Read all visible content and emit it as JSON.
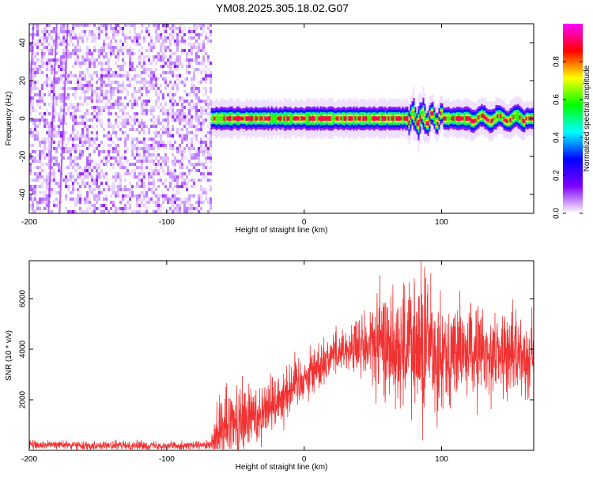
{
  "title": "YM08.2025.305.18.02.G07",
  "chart_data": [
    {
      "type": "heatmap",
      "xlabel": "Height of straight line (km)",
      "ylabel": "Frequency (Hz)",
      "xlim": [
        -200,
        167
      ],
      "ylim": [
        -50,
        50
      ],
      "xticks": [
        -200,
        -100,
        0,
        100
      ],
      "yticks": [
        -40,
        -20,
        0,
        20,
        40
      ],
      "noise_region_x": [
        -200,
        -68
      ],
      "signal_band_center_hz": 0,
      "signal_band_halfwidth_hz": 4,
      "colorbar": {
        "label": "Normalized spectral amplitude",
        "range": [
          0,
          1
        ],
        "ticks": [
          "0.0",
          "0.2",
          "0.4",
          "0.6",
          "0.8"
        ],
        "tick_values": [
          0.0,
          0.2,
          0.4,
          0.6,
          0.8
        ],
        "colors": [
          "#ffffff",
          "#8000ff",
          "#0000ff",
          "#00ffff",
          "#00ff00",
          "#ffff00",
          "#ff0000",
          "#ff00ff"
        ]
      }
    },
    {
      "type": "line",
      "xlabel": "Height of straight line (km)",
      "ylabel": "SNR (10 * v/v)",
      "xlim": [
        -200,
        167
      ],
      "ylim": [
        0,
        7500
      ],
      "xticks": [
        -200,
        -100,
        0,
        100
      ],
      "yticks": [
        2000,
        4000,
        6000
      ],
      "color": "#f03232",
      "series": [
        {
          "x": [
            -200,
            -180,
            -160,
            -140,
            -120,
            -100,
            -80,
            -68,
            -60,
            -55,
            -50,
            -45,
            -40,
            -35,
            -30,
            -25,
            -20,
            -15,
            -10,
            -5,
            0,
            5,
            10,
            15,
            20,
            25,
            30,
            35,
            40,
            45,
            50,
            55,
            60,
            65,
            70,
            75,
            80,
            85,
            90,
            95,
            100,
            110,
            120,
            130,
            140,
            150,
            160,
            167
          ],
          "y": [
            200,
            220,
            200,
            190,
            200,
            190,
            190,
            200,
            700,
            900,
            1000,
            1150,
            1300,
            1400,
            1600,
            1800,
            2000,
            2250,
            2500,
            2700,
            2900,
            3100,
            3300,
            3550,
            3800,
            3950,
            4000,
            4050,
            4000,
            4100,
            4150,
            4200,
            4150,
            4200,
            4050,
            4100,
            4000,
            3950,
            4050,
            3900,
            3950,
            3850,
            3900,
            3850,
            3800,
            3850,
            3750,
            3750
          ]
        }
      ],
      "noise_amplitude": [
        [
          -200,
          80
        ],
        [
          -68,
          80
        ],
        [
          -60,
          900
        ],
        [
          -30,
          600
        ],
        [
          0,
          500
        ],
        [
          30,
          400
        ],
        [
          50,
          900
        ],
        [
          70,
          1200
        ],
        [
          90,
          1400
        ],
        [
          100,
          1000
        ],
        [
          167,
          700
        ]
      ],
      "spikes": [
        [
          -57,
          2500
        ],
        [
          -37,
          2100
        ],
        [
          55,
          6000
        ],
        [
          80,
          6800
        ],
        [
          85,
          7500
        ],
        [
          86,
          400
        ],
        [
          92,
          7000
        ],
        [
          95,
          1500
        ],
        [
          78,
          1200
        ]
      ]
    }
  ]
}
